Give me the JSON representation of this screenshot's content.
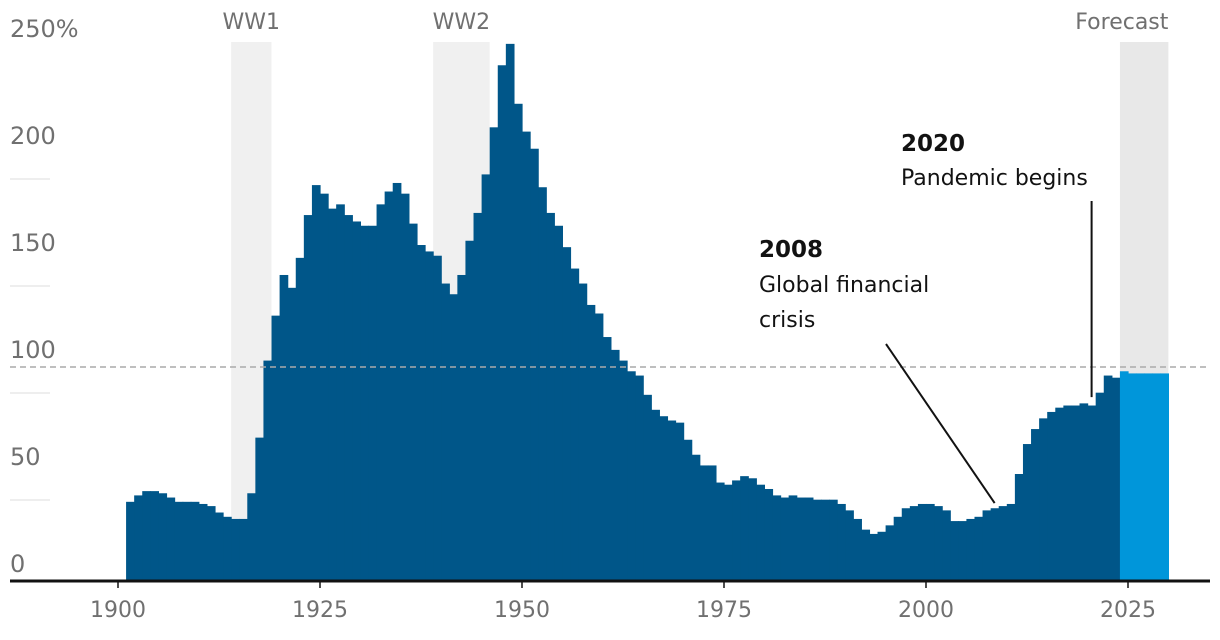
{
  "chart_data": {
    "type": "bar",
    "title": "",
    "xlabel": "",
    "ylabel": "",
    "xlim": [
      1890,
      2035
    ],
    "ylim": [
      0,
      250
    ],
    "y_ticks": [
      {
        "value": 0,
        "label": "0"
      },
      {
        "value": 50,
        "label": "50"
      },
      {
        "value": 100,
        "label": "100"
      },
      {
        "value": 150,
        "label": "150"
      },
      {
        "value": 200,
        "label": "200"
      },
      {
        "value": 250,
        "label": "250%"
      }
    ],
    "x_ticks": [
      {
        "value": 1900,
        "label": "1900"
      },
      {
        "value": 1925,
        "label": "1925"
      },
      {
        "value": 1950,
        "label": "1950"
      },
      {
        "value": 1975,
        "label": "1975"
      },
      {
        "value": 2000,
        "label": "2000"
      },
      {
        "value": 2025,
        "label": "2025"
      }
    ],
    "reference_line": {
      "value": 100,
      "style": "dashed"
    },
    "shaded_periods": [
      {
        "label": "WW1",
        "start": 1914,
        "end": 1918
      },
      {
        "label": "WW2",
        "start": 1939,
        "end": 1945
      },
      {
        "label": "Forecast",
        "start": 2024,
        "end": 2029
      }
    ],
    "series": [
      {
        "color": "#005689",
        "years": [
          1901,
          1902,
          1903,
          1904,
          1905,
          1906,
          1907,
          1908,
          1909,
          1910,
          1911,
          1912,
          1913,
          1914,
          1915,
          1916,
          1917,
          1918,
          1919,
          1920,
          1921,
          1922,
          1923,
          1924,
          1925,
          1926,
          1927,
          1928,
          1929,
          1930,
          1931,
          1932,
          1933,
          1934,
          1935,
          1936,
          1937,
          1938,
          1939,
          1940,
          1941,
          1942,
          1943,
          1944,
          1945,
          1946,
          1947,
          1948,
          1949,
          1950,
          1951,
          1952,
          1953,
          1954,
          1955,
          1956,
          1957,
          1958,
          1959,
          1960,
          1961,
          1962,
          1963,
          1964,
          1965,
          1966,
          1967,
          1968,
          1969,
          1970,
          1971,
          1972,
          1973,
          1974,
          1975,
          1976,
          1977,
          1978,
          1979,
          1980,
          1981,
          1982,
          1983,
          1984,
          1985,
          1986,
          1987,
          1988,
          1989,
          1990,
          1991,
          1992,
          1993,
          1994,
          1995,
          1996,
          1997,
          1998,
          1999,
          2000,
          2001,
          2002,
          2003,
          2004,
          2005,
          2006,
          2007,
          2008,
          2009,
          2010,
          2011,
          2012,
          2013,
          2014,
          2015,
          2016,
          2017,
          2018,
          2019,
          2020,
          2021,
          2022,
          2023
        ],
        "values": [
          37,
          40,
          42,
          42,
          41,
          39,
          37,
          37,
          37,
          36,
          35,
          32,
          30,
          29,
          29,
          41,
          67,
          103,
          124,
          143,
          137,
          151,
          171,
          185,
          181,
          174,
          176,
          171,
          168,
          166,
          166,
          176,
          182,
          186,
          181,
          167,
          157,
          154,
          152,
          139,
          134,
          143,
          159,
          172,
          190,
          212,
          241,
          251,
          223,
          210,
          202,
          184,
          172,
          166,
          156,
          146,
          139,
          129,
          125,
          114,
          108,
          103,
          98,
          96,
          87,
          80,
          77,
          75,
          74,
          66,
          59,
          54,
          54,
          46,
          45,
          47,
          49,
          48,
          45,
          43,
          40,
          39,
          40,
          39,
          39,
          38,
          38,
          38,
          36,
          33,
          29,
          24,
          22,
          23,
          26,
          30,
          34,
          35,
          36,
          36,
          35,
          33,
          28,
          28,
          29,
          30,
          33,
          34,
          35,
          36,
          50,
          64,
          71,
          76,
          79,
          81,
          82,
          82,
          83,
          82,
          88,
          96,
          95
        ]
      },
      {
        "color": "#0096da",
        "years": [
          2024,
          2025,
          2026,
          2027,
          2028,
          2029
        ],
        "values": [
          98,
          97,
          97,
          97,
          97,
          97
        ]
      }
    ],
    "annotations": [
      {
        "year": "2020",
        "text": "Pandemic begins",
        "target_x": 2020,
        "target_y": 85
      },
      {
        "year": "2008",
        "text": "Global financial crisis",
        "line1": "Global financial",
        "line2": "crisis",
        "target_x": 2008,
        "target_y": 35
      }
    ]
  }
}
